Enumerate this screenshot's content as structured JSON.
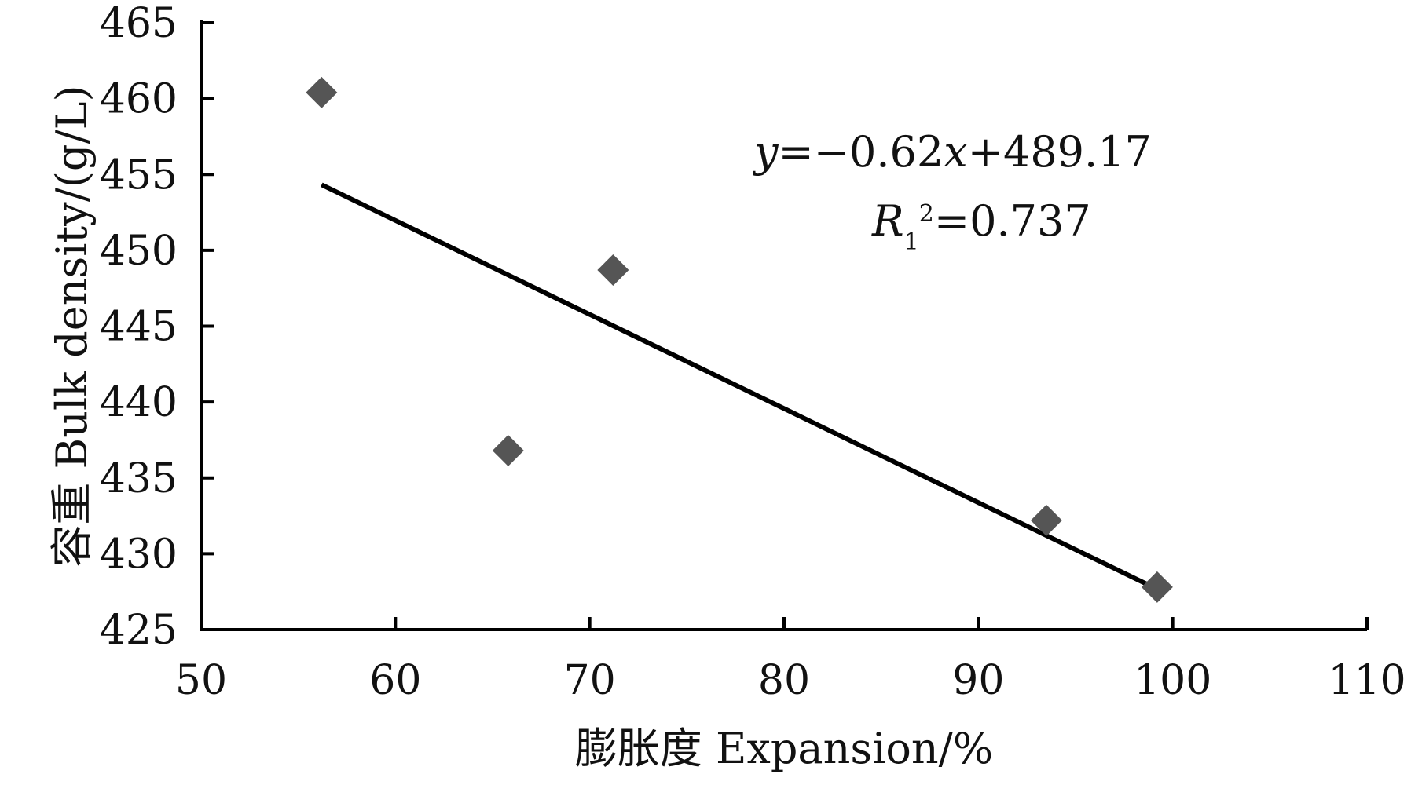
{
  "chart_data": {
    "type": "scatter",
    "title": "",
    "xlabel": "膨胀度  Expansion/%",
    "ylabel": "容重  Bulk density/(g/L)",
    "xlim": [
      50,
      110
    ],
    "ylim": [
      425,
      465
    ],
    "x_ticks": [
      "50",
      "60",
      "70",
      "80",
      "90",
      "100",
      "110"
    ],
    "y_ticks": [
      "425",
      "430",
      "435",
      "440",
      "445",
      "450",
      "455",
      "460",
      "465"
    ],
    "grid": false,
    "legend": "none",
    "marker": "diamond",
    "marker_color": "#555555",
    "trendline_color": "#000000",
    "series": [
      {
        "x": [
          56.2,
          65.8,
          71.2,
          93.5,
          99.2
        ],
        "y": [
          460.4,
          436.8,
          448.7,
          432.2,
          427.8
        ]
      }
    ],
    "trendline": {
      "slope": -0.62,
      "intercept": 489.17,
      "x_range": [
        56.2,
        99.2
      ]
    },
    "annotation": {
      "eq_var_y": "y",
      "eq_part1": "=−0.62",
      "eq_var_x": "x",
      "eq_part2": "+489.17",
      "r_var": "R",
      "r_sub": "1",
      "r_sup": "2",
      "r_value": "=0.737"
    }
  }
}
